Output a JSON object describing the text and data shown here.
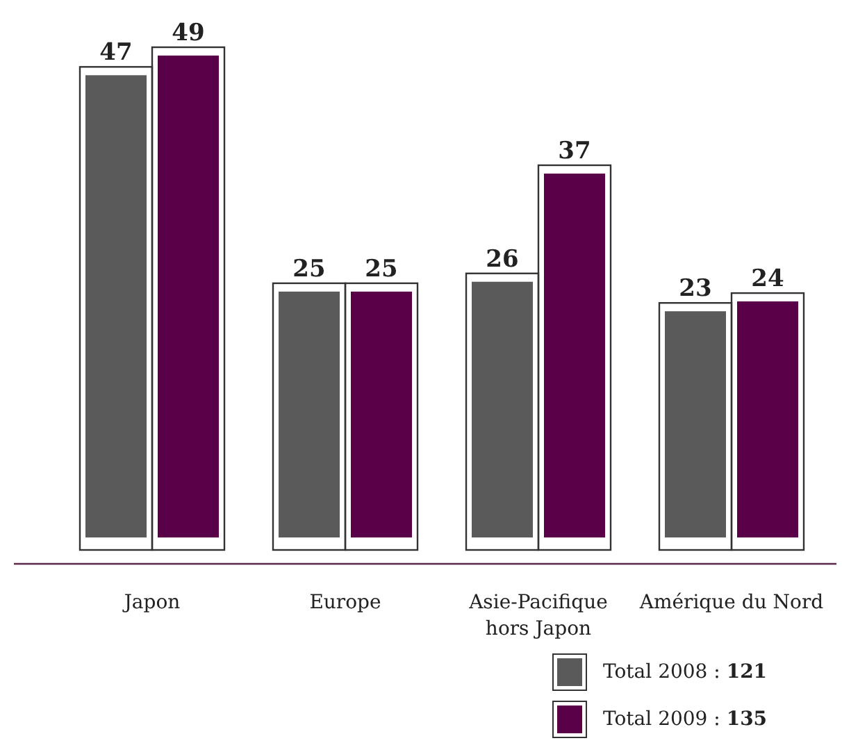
{
  "chart_data": {
    "type": "bar",
    "categories": [
      "Japon",
      "Europe",
      "Asie-Pacifique hors Japon",
      "Amérique du Nord"
    ],
    "series": [
      {
        "name": "Total 2008 : 121",
        "color": "#5a5a5a",
        "values": [
          47,
          25,
          26,
          23
        ]
      },
      {
        "name": "Total 2009 : 135",
        "color": "#5a0048",
        "values": [
          49,
          25,
          37,
          24
        ]
      }
    ],
    "data_labels": true,
    "legend": "bottom right"
  }
}
